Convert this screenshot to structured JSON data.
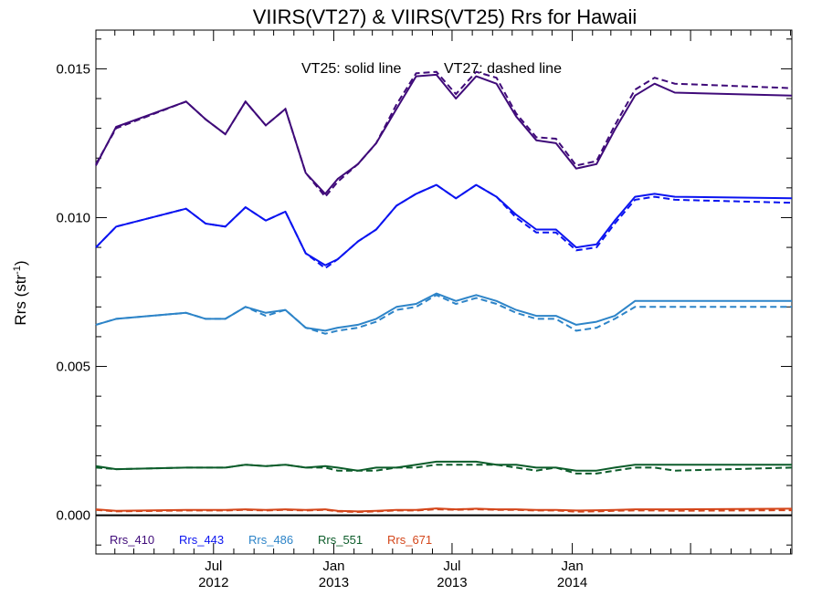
{
  "chart_data": {
    "type": "line",
    "title": "VIIRS(VT27) & VIIRS(VT25)  Rrs for Hawaii",
    "ylabel": "Rrs (str",
    "ylabel_sup": "-1",
    "annotation_solid": "VT25: solid line",
    "annotation_dashed": "VT27: dashed line",
    "xlim": [
      "2012-01-03",
      "2014-12-03"
    ],
    "ylim": [
      -0.0013,
      0.0163
    ],
    "yticks": [
      {
        "value": 0.0,
        "label": "0.000"
      },
      {
        "value": 0.005,
        "label": "0.005"
      },
      {
        "value": 0.01,
        "label": "0.010"
      },
      {
        "value": 0.015,
        "label": "0.015"
      }
    ],
    "xticks": [
      {
        "date": "2012-07-01",
        "month": "Jul",
        "year": "2012"
      },
      {
        "date": "2013-01-01",
        "month": "Jan",
        "year": "2013"
      },
      {
        "date": "2013-07-01",
        "month": "Jul",
        "year": "2013"
      },
      {
        "date": "2014-01-01",
        "month": "Jan",
        "year": "2014"
      }
    ],
    "zero_line": 0.0,
    "x": [
      "2012-01-03",
      "2012-02-03",
      "2012-05-20",
      "2012-06-19",
      "2012-07-19",
      "2012-08-19",
      "2012-09-19",
      "2012-10-19",
      "2012-11-19",
      "2012-12-19",
      "2013-01-07",
      "2013-02-07",
      "2013-03-07",
      "2013-04-07",
      "2013-05-07",
      "2013-06-07",
      "2013-07-07",
      "2013-08-07",
      "2013-09-07",
      "2013-10-07",
      "2013-11-07",
      "2013-12-07",
      "2014-01-07",
      "2014-02-07",
      "2014-03-07",
      "2014-04-07",
      "2014-05-07",
      "2014-06-07",
      "2014-12-03"
    ],
    "series": [
      {
        "name": "Rrs_410",
        "color": "#3f0a79",
        "vt25": [
          0.01175,
          0.01305,
          0.0139,
          0.0133,
          0.0128,
          0.0139,
          0.0131,
          0.01365,
          0.0115,
          0.0108,
          0.0113,
          0.0118,
          0.0125,
          0.01365,
          0.01475,
          0.0148,
          0.014,
          0.01475,
          0.0145,
          0.0134,
          0.0126,
          0.0125,
          0.01165,
          0.0118,
          0.01295,
          0.0141,
          0.0145,
          0.0142,
          0.0141
        ],
        "vt27": [
          0.0118,
          0.013,
          0.0139,
          0.0133,
          0.0128,
          0.0139,
          0.0131,
          0.01365,
          0.0115,
          0.0107,
          0.0112,
          0.0118,
          0.0125,
          0.0138,
          0.01485,
          0.0149,
          0.01415,
          0.0149,
          0.0147,
          0.0135,
          0.0127,
          0.01265,
          0.01175,
          0.0119,
          0.0131,
          0.0143,
          0.0147,
          0.0145,
          0.01435
        ]
      },
      {
        "name": "Rrs_443",
        "color": "#0b14f0",
        "vt25": [
          0.009,
          0.0097,
          0.0103,
          0.0098,
          0.0097,
          0.01035,
          0.0099,
          0.0102,
          0.0088,
          0.0084,
          0.0086,
          0.0092,
          0.0096,
          0.0104,
          0.0108,
          0.0111,
          0.01065,
          0.0111,
          0.0107,
          0.0101,
          0.0096,
          0.0096,
          0.009,
          0.0091,
          0.0099,
          0.0107,
          0.0108,
          0.0107,
          0.01065
        ],
        "vt27": [
          0.009,
          0.0097,
          0.0103,
          0.0098,
          0.0097,
          0.01035,
          0.0099,
          0.0102,
          0.0088,
          0.0083,
          0.0086,
          0.0092,
          0.0096,
          0.0104,
          0.0108,
          0.0111,
          0.01065,
          0.0111,
          0.0107,
          0.01,
          0.0095,
          0.0095,
          0.0089,
          0.009,
          0.0098,
          0.0106,
          0.0107,
          0.0106,
          0.0105
        ]
      },
      {
        "name": "Rrs_486",
        "color": "#2d84c8",
        "vt25": [
          0.0064,
          0.0066,
          0.0068,
          0.0066,
          0.0066,
          0.007,
          0.0068,
          0.0069,
          0.0063,
          0.0062,
          0.0063,
          0.0064,
          0.0066,
          0.007,
          0.0071,
          0.00745,
          0.0072,
          0.0074,
          0.0072,
          0.0069,
          0.0067,
          0.0067,
          0.0064,
          0.0065,
          0.0067,
          0.0072,
          0.0072,
          0.0072,
          0.0072
        ],
        "vt27": [
          0.0064,
          0.0066,
          0.0068,
          0.0066,
          0.0066,
          0.007,
          0.0067,
          0.0069,
          0.0063,
          0.0061,
          0.0062,
          0.0063,
          0.0065,
          0.0069,
          0.007,
          0.0074,
          0.0071,
          0.0073,
          0.0071,
          0.0068,
          0.0066,
          0.0066,
          0.0062,
          0.0063,
          0.0066,
          0.007,
          0.007,
          0.007,
          0.007
        ]
      },
      {
        "name": "Rrs_551",
        "color": "#0c5c2a",
        "vt25": [
          0.00165,
          0.00155,
          0.0016,
          0.0016,
          0.0016,
          0.0017,
          0.00165,
          0.0017,
          0.0016,
          0.00165,
          0.0016,
          0.0015,
          0.0016,
          0.0016,
          0.0017,
          0.0018,
          0.0018,
          0.0018,
          0.0017,
          0.0017,
          0.0016,
          0.0016,
          0.0015,
          0.0015,
          0.0016,
          0.0017,
          0.0017,
          0.0017,
          0.0017
        ],
        "vt27": [
          0.0016,
          0.00155,
          0.0016,
          0.0016,
          0.0016,
          0.0017,
          0.00165,
          0.0017,
          0.0016,
          0.0016,
          0.0015,
          0.0015,
          0.0015,
          0.0016,
          0.0016,
          0.0017,
          0.0017,
          0.0017,
          0.0017,
          0.0016,
          0.0015,
          0.0016,
          0.0014,
          0.0014,
          0.0015,
          0.0016,
          0.0016,
          0.0015,
          0.0016
        ]
      },
      {
        "name": "Rrs_671",
        "color": "#d4461a",
        "vt25": [
          0.0002,
          0.00015,
          0.00018,
          0.00018,
          0.00018,
          0.0002,
          0.00018,
          0.0002,
          0.00018,
          0.0002,
          0.00015,
          0.00013,
          0.00015,
          0.00018,
          0.00018,
          0.00023,
          0.0002,
          0.00022,
          0.0002,
          0.0002,
          0.00018,
          0.00018,
          0.00016,
          0.00017,
          0.00018,
          0.0002,
          0.0002,
          0.0002,
          0.00022
        ],
        "vt27": [
          0.00018,
          0.00013,
          0.00016,
          0.00016,
          0.00016,
          0.00018,
          0.00016,
          0.00018,
          0.00016,
          0.00018,
          0.00013,
          0.00011,
          0.00013,
          0.00016,
          0.00016,
          0.0002,
          0.00018,
          0.0002,
          0.00018,
          0.00018,
          0.00016,
          0.00016,
          0.00012,
          0.00013,
          0.00015,
          0.00016,
          0.00016,
          0.00015,
          0.00017
        ]
      }
    ],
    "legend_position": "bottom-left"
  }
}
